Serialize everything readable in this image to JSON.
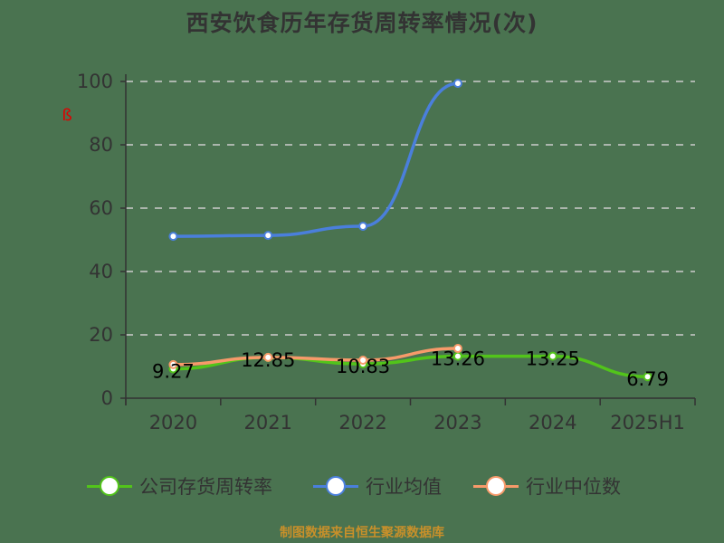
{
  "title": "西安饮食历年存货周转率情况(次)",
  "footer": "制图数据来自恒生聚源数据库",
  "colors": {
    "background": "#4a7350",
    "company": "#52c41a",
    "industry_avg": "#4a7fdc",
    "industry_median": "#f79a6a",
    "axis": "#333333",
    "grid": "#cccccc",
    "footer": "#c8902a"
  },
  "legend": [
    {
      "label": "公司存货周转率",
      "color": "#52c41a"
    },
    {
      "label": "行业均值",
      "color": "#4a7fdc"
    },
    {
      "label": "行业中位数",
      "color": "#f79a6a"
    }
  ],
  "chart_data": {
    "type": "line",
    "title": "西安饮食历年存货周转率情况(次)",
    "xlabel": "",
    "ylabel": "",
    "categories": [
      "2020",
      "2021",
      "2022",
      "2023",
      "2024",
      "2025H1"
    ],
    "ylim": [
      0,
      100
    ],
    "yticks": [
      0,
      20,
      40,
      60,
      80,
      100
    ],
    "grid": true,
    "legend_position": "bottom",
    "series": [
      {
        "name": "公司存货周转率",
        "values": [
          9.27,
          12.85,
          10.83,
          13.26,
          13.25,
          6.79
        ],
        "labels": [
          "9.27",
          "12.85",
          "10.83",
          "13.26",
          "13.25",
          "6.79"
        ]
      },
      {
        "name": "行业均值",
        "values": [
          51.1,
          51.4,
          54.3,
          99.4,
          null,
          null
        ]
      },
      {
        "name": "行业中位数",
        "values": [
          10.6,
          12.9,
          12.0,
          15.7,
          null,
          null
        ]
      }
    ]
  }
}
